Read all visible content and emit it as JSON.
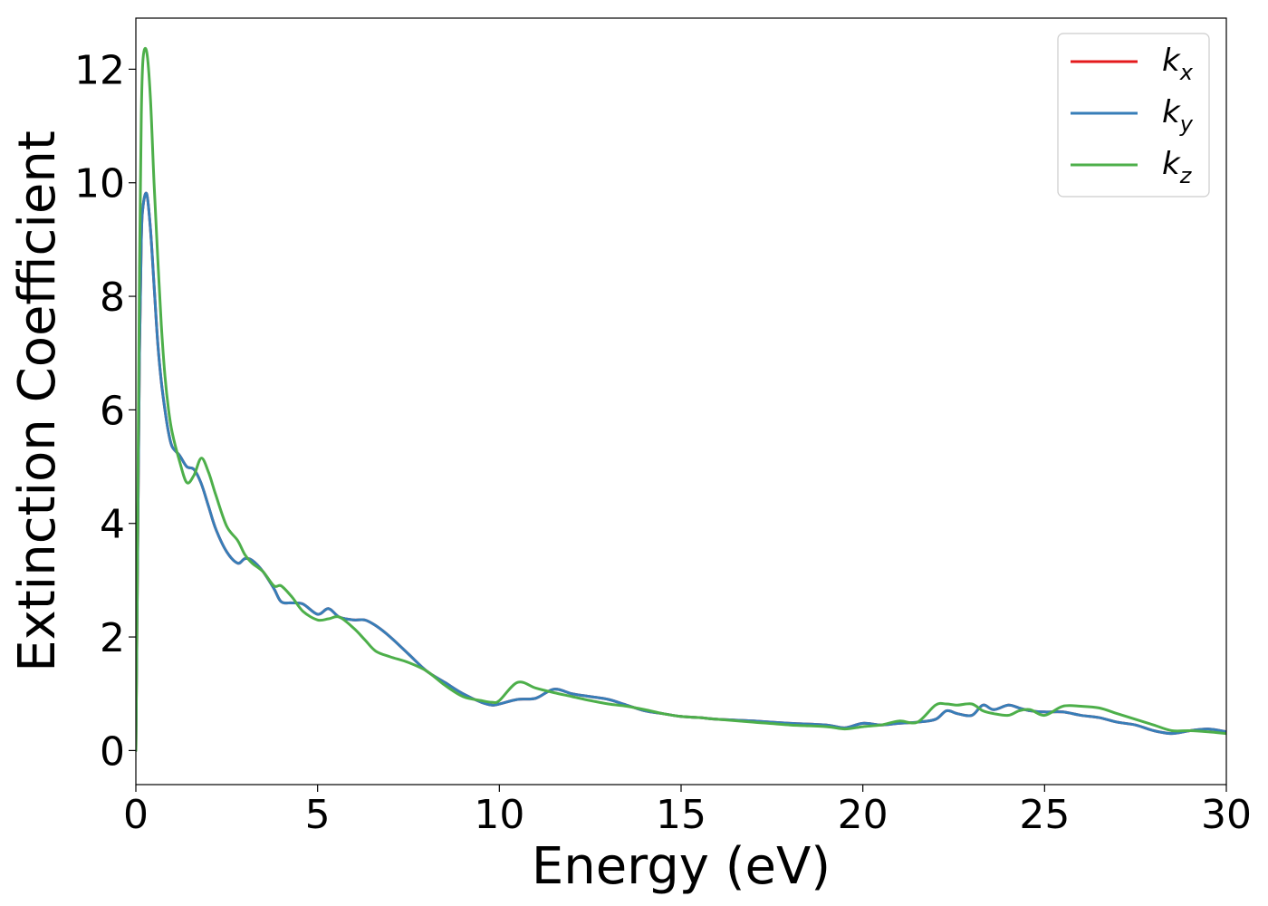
{
  "chart_data": {
    "type": "line",
    "xlabel": "Energy (eV)",
    "ylabel": "Extinction Coefficient",
    "xlim": [
      0,
      30
    ],
    "ylim": [
      -0.6,
      12.9
    ],
    "xticks": [
      0,
      5,
      10,
      15,
      20,
      25,
      30
    ],
    "xtick_labels": [
      "0",
      "5",
      "10",
      "15",
      "20",
      "25",
      "30"
    ],
    "yticks": [
      0,
      2,
      4,
      6,
      8,
      10,
      12
    ],
    "ytick_labels": [
      "0",
      "2",
      "4",
      "6",
      "8",
      "10",
      "12"
    ],
    "grid": false,
    "legend_position": "top-right",
    "series": [
      {
        "name": "k_x",
        "label_main": "k",
        "label_sub": "x",
        "color": "#e41a1c",
        "x": [
          0,
          0.05,
          0.1,
          0.15,
          0.2,
          0.3,
          0.4,
          0.5,
          0.6,
          0.7,
          0.8,
          0.9,
          1.0,
          1.2,
          1.4,
          1.6,
          1.8,
          2.0,
          2.2,
          2.5,
          2.8,
          3.0,
          3.2,
          3.5,
          3.8,
          4.0,
          4.3,
          4.6,
          5.0,
          5.3,
          5.6,
          6.0,
          6.3,
          6.6,
          7.0,
          7.5,
          8.0,
          8.5,
          9.0,
          9.5,
          9.8,
          10.0,
          10.5,
          11.0,
          11.5,
          12.0,
          12.5,
          13.0,
          13.5,
          14.0,
          14.5,
          15.0,
          15.5,
          16.0,
          17.0,
          18.0,
          19.0,
          19.5,
          20.0,
          20.5,
          21.0,
          21.5,
          22.0,
          22.3,
          22.6,
          23.0,
          23.3,
          23.6,
          24.0,
          24.3,
          24.6,
          25.0,
          25.5,
          26.0,
          26.5,
          27.0,
          27.5,
          28.0,
          28.5,
          29.0,
          29.5,
          30.0
        ],
        "y": [
          0,
          3.5,
          7.0,
          9.0,
          9.6,
          9.8,
          9.2,
          8.2,
          7.2,
          6.5,
          6.0,
          5.6,
          5.35,
          5.2,
          5.0,
          4.95,
          4.7,
          4.3,
          3.9,
          3.5,
          3.3,
          3.38,
          3.35,
          3.15,
          2.85,
          2.62,
          2.6,
          2.58,
          2.4,
          2.5,
          2.35,
          2.3,
          2.3,
          2.2,
          2.0,
          1.7,
          1.4,
          1.2,
          1.0,
          0.85,
          0.8,
          0.82,
          0.9,
          0.92,
          1.08,
          1.0,
          0.95,
          0.9,
          0.8,
          0.7,
          0.65,
          0.6,
          0.58,
          0.55,
          0.52,
          0.48,
          0.45,
          0.4,
          0.48,
          0.45,
          0.48,
          0.5,
          0.55,
          0.7,
          0.65,
          0.62,
          0.8,
          0.72,
          0.8,
          0.75,
          0.7,
          0.68,
          0.68,
          0.62,
          0.58,
          0.5,
          0.45,
          0.35,
          0.3,
          0.35,
          0.38,
          0.33
        ]
      },
      {
        "name": "k_y",
        "label_main": "k",
        "label_sub": "y",
        "color": "#377eb8",
        "x": [
          0,
          0.05,
          0.1,
          0.15,
          0.2,
          0.3,
          0.4,
          0.5,
          0.6,
          0.7,
          0.8,
          0.9,
          1.0,
          1.2,
          1.4,
          1.6,
          1.8,
          2.0,
          2.2,
          2.5,
          2.8,
          3.0,
          3.2,
          3.5,
          3.8,
          4.0,
          4.3,
          4.6,
          5.0,
          5.3,
          5.6,
          6.0,
          6.3,
          6.6,
          7.0,
          7.5,
          8.0,
          8.5,
          9.0,
          9.5,
          9.8,
          10.0,
          10.5,
          11.0,
          11.5,
          12.0,
          12.5,
          13.0,
          13.5,
          14.0,
          14.5,
          15.0,
          15.5,
          16.0,
          17.0,
          18.0,
          19.0,
          19.5,
          20.0,
          20.5,
          21.0,
          21.5,
          22.0,
          22.3,
          22.6,
          23.0,
          23.3,
          23.6,
          24.0,
          24.3,
          24.6,
          25.0,
          25.5,
          26.0,
          26.5,
          27.0,
          27.5,
          28.0,
          28.5,
          29.0,
          29.5,
          30.0
        ],
        "y": [
          0,
          3.5,
          7.0,
          9.0,
          9.6,
          9.8,
          9.2,
          8.2,
          7.2,
          6.5,
          6.0,
          5.6,
          5.35,
          5.2,
          5.0,
          4.95,
          4.7,
          4.3,
          3.9,
          3.5,
          3.3,
          3.38,
          3.35,
          3.15,
          2.85,
          2.62,
          2.6,
          2.58,
          2.4,
          2.5,
          2.35,
          2.3,
          2.3,
          2.2,
          2.0,
          1.7,
          1.4,
          1.2,
          1.0,
          0.85,
          0.8,
          0.82,
          0.9,
          0.92,
          1.08,
          1.0,
          0.95,
          0.9,
          0.8,
          0.7,
          0.65,
          0.6,
          0.58,
          0.55,
          0.52,
          0.48,
          0.45,
          0.4,
          0.48,
          0.45,
          0.48,
          0.5,
          0.55,
          0.7,
          0.65,
          0.62,
          0.8,
          0.72,
          0.8,
          0.75,
          0.7,
          0.68,
          0.68,
          0.62,
          0.58,
          0.5,
          0.45,
          0.35,
          0.3,
          0.35,
          0.38,
          0.33
        ]
      },
      {
        "name": "k_z",
        "label_main": "k",
        "label_sub": "z",
        "color": "#4daf4a",
        "x": [
          0,
          0.05,
          0.1,
          0.15,
          0.2,
          0.3,
          0.4,
          0.5,
          0.6,
          0.7,
          0.8,
          0.9,
          1.0,
          1.2,
          1.4,
          1.6,
          1.8,
          2.0,
          2.2,
          2.5,
          2.8,
          3.0,
          3.2,
          3.5,
          3.8,
          4.0,
          4.3,
          4.6,
          5.0,
          5.3,
          5.6,
          6.0,
          6.3,
          6.6,
          7.0,
          7.5,
          8.0,
          8.5,
          9.0,
          9.5,
          9.8,
          10.0,
          10.5,
          11.0,
          11.5,
          12.0,
          12.5,
          13.0,
          13.5,
          14.0,
          14.5,
          15.0,
          15.5,
          16.0,
          17.0,
          18.0,
          19.0,
          19.5,
          20.0,
          20.5,
          21.0,
          21.5,
          22.0,
          22.3,
          22.6,
          23.0,
          23.3,
          23.6,
          24.0,
          24.3,
          24.6,
          25.0,
          25.5,
          26.0,
          26.5,
          27.0,
          27.5,
          28.0,
          28.5,
          29.0,
          29.5,
          30.0
        ],
        "y": [
          0,
          4.0,
          8.5,
          11.2,
          12.2,
          12.3,
          11.5,
          10.0,
          8.7,
          7.5,
          6.6,
          6.0,
          5.6,
          5.1,
          4.72,
          4.85,
          5.15,
          4.9,
          4.5,
          3.95,
          3.7,
          3.45,
          3.3,
          3.15,
          2.9,
          2.9,
          2.7,
          2.45,
          2.3,
          2.32,
          2.35,
          2.15,
          1.95,
          1.75,
          1.65,
          1.55,
          1.4,
          1.15,
          0.95,
          0.88,
          0.85,
          0.88,
          1.2,
          1.1,
          1.02,
          0.95,
          0.88,
          0.82,
          0.78,
          0.72,
          0.65,
          0.6,
          0.58,
          0.55,
          0.5,
          0.45,
          0.42,
          0.38,
          0.42,
          0.45,
          0.52,
          0.5,
          0.8,
          0.82,
          0.8,
          0.82,
          0.7,
          0.65,
          0.62,
          0.7,
          0.72,
          0.62,
          0.78,
          0.78,
          0.75,
          0.65,
          0.55,
          0.45,
          0.35,
          0.35,
          0.33,
          0.3
        ]
      }
    ]
  }
}
